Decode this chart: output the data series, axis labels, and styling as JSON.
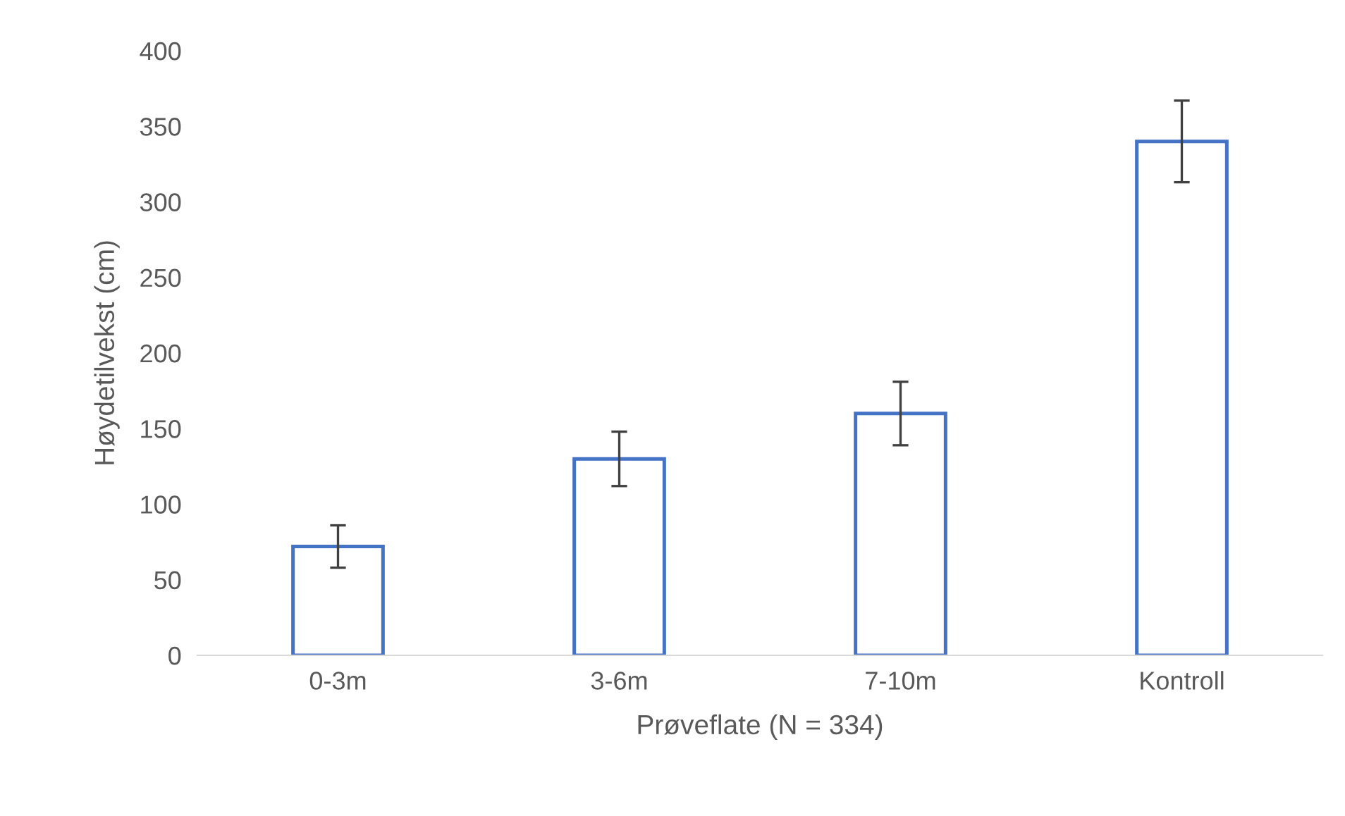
{
  "chart_data": {
    "type": "bar",
    "xlabel": "Prøveflate (N = 334)",
    "ylabel": "Høydetilvekst (cm)",
    "categories": [
      "0-3m",
      "3-6m",
      "7-10m",
      "Kontroll"
    ],
    "values": [
      72,
      130,
      160,
      340
    ],
    "errors": [
      14,
      18,
      21,
      27
    ],
    "color": "#4472c4",
    "ylim": [
      0,
      400
    ],
    "yticks": [
      0,
      50,
      100,
      150,
      200,
      250,
      300,
      350,
      400
    ],
    "grid": false,
    "legend": false
  }
}
